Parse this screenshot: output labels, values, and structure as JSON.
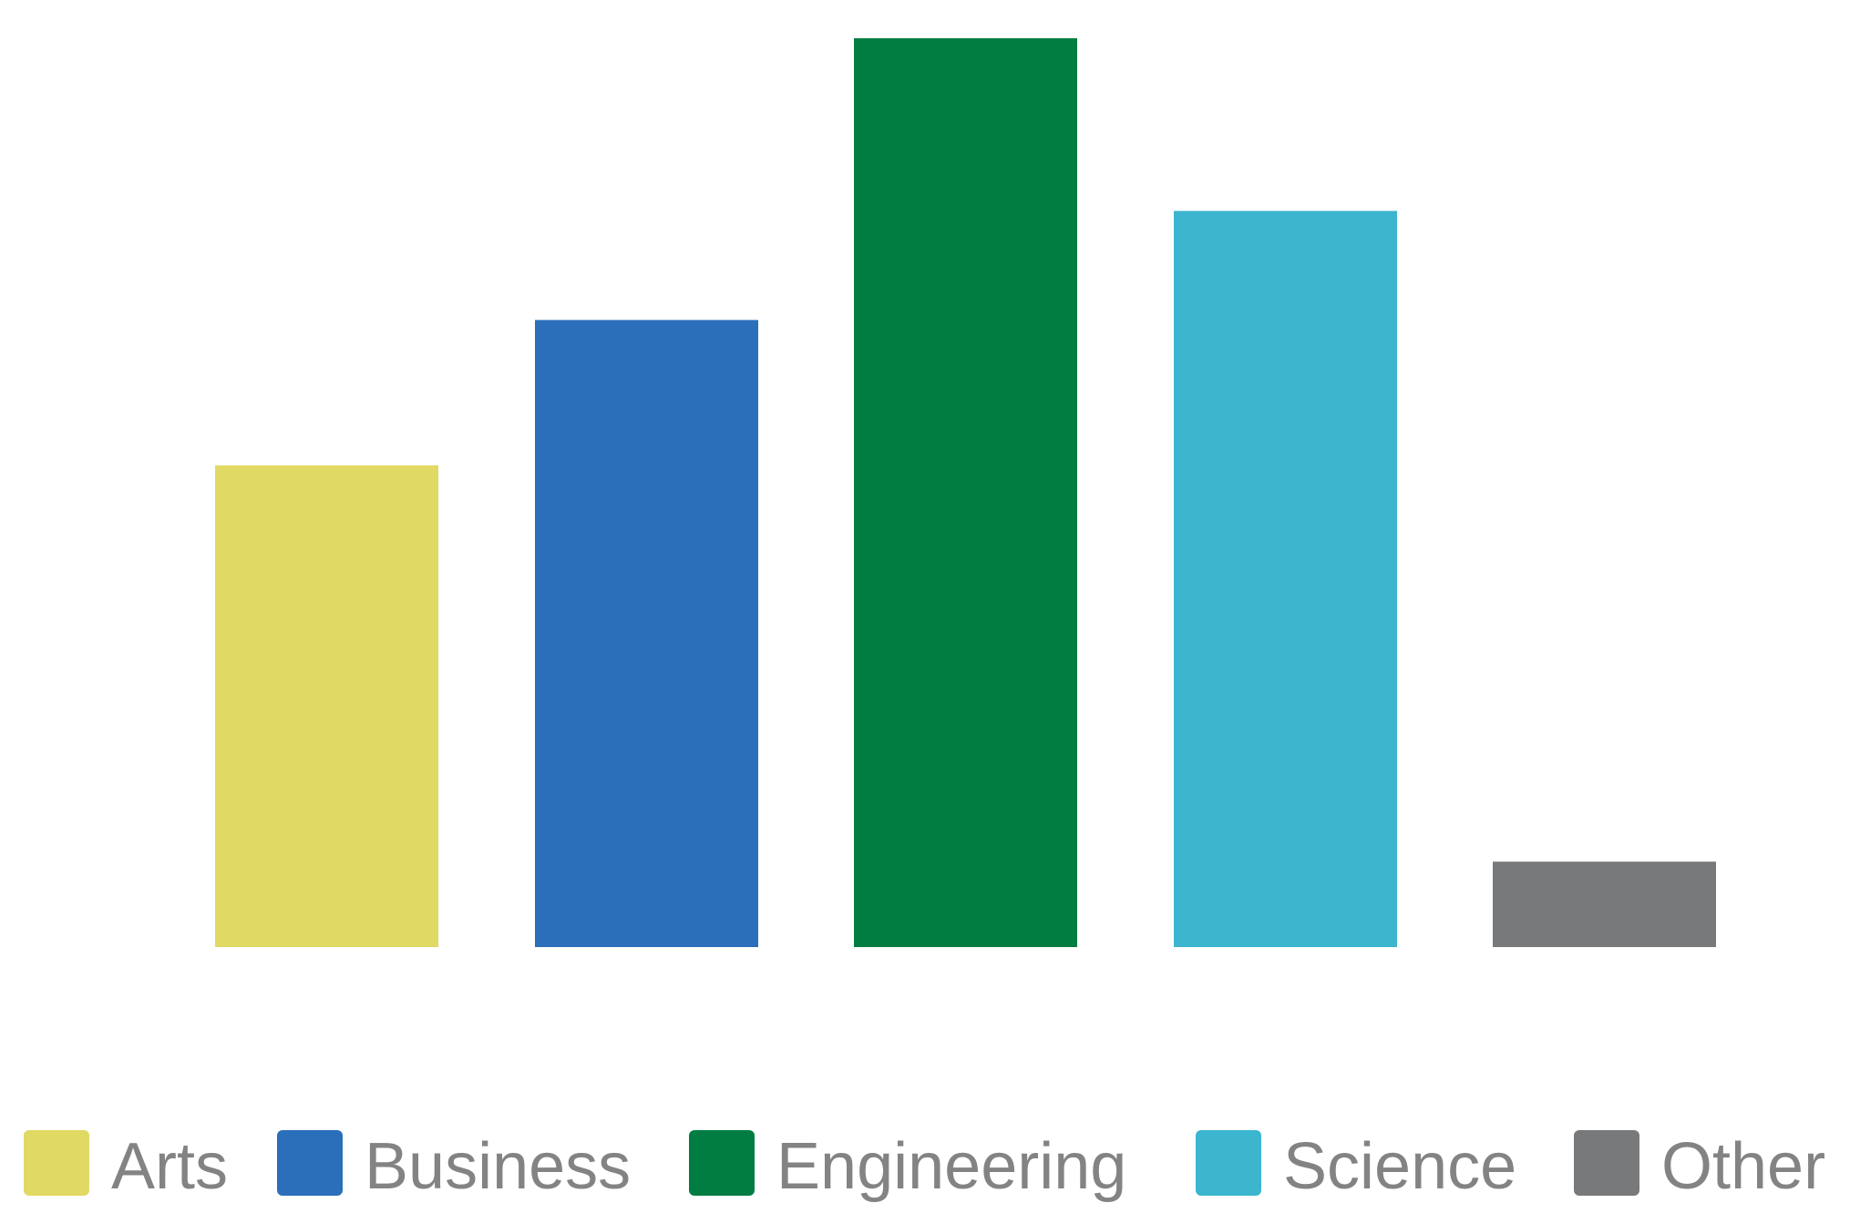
{
  "chart_data": {
    "type": "bar",
    "categories": [
      "Arts",
      "Business",
      "Engineering",
      "Science",
      "Other"
    ],
    "values": [
      53,
      69,
      100,
      81,
      9.4
    ],
    "colors": [
      "#e0d963",
      "#2b6eba",
      "#027d42",
      "#3cb5cf",
      "#78797b"
    ],
    "ylim": [
      0,
      100
    ],
    "grid": false,
    "axes_visible": false,
    "legend": {
      "position": "bottom",
      "entries": [
        "Arts",
        "Business",
        "Engineering",
        "Science",
        "Other"
      ]
    }
  }
}
